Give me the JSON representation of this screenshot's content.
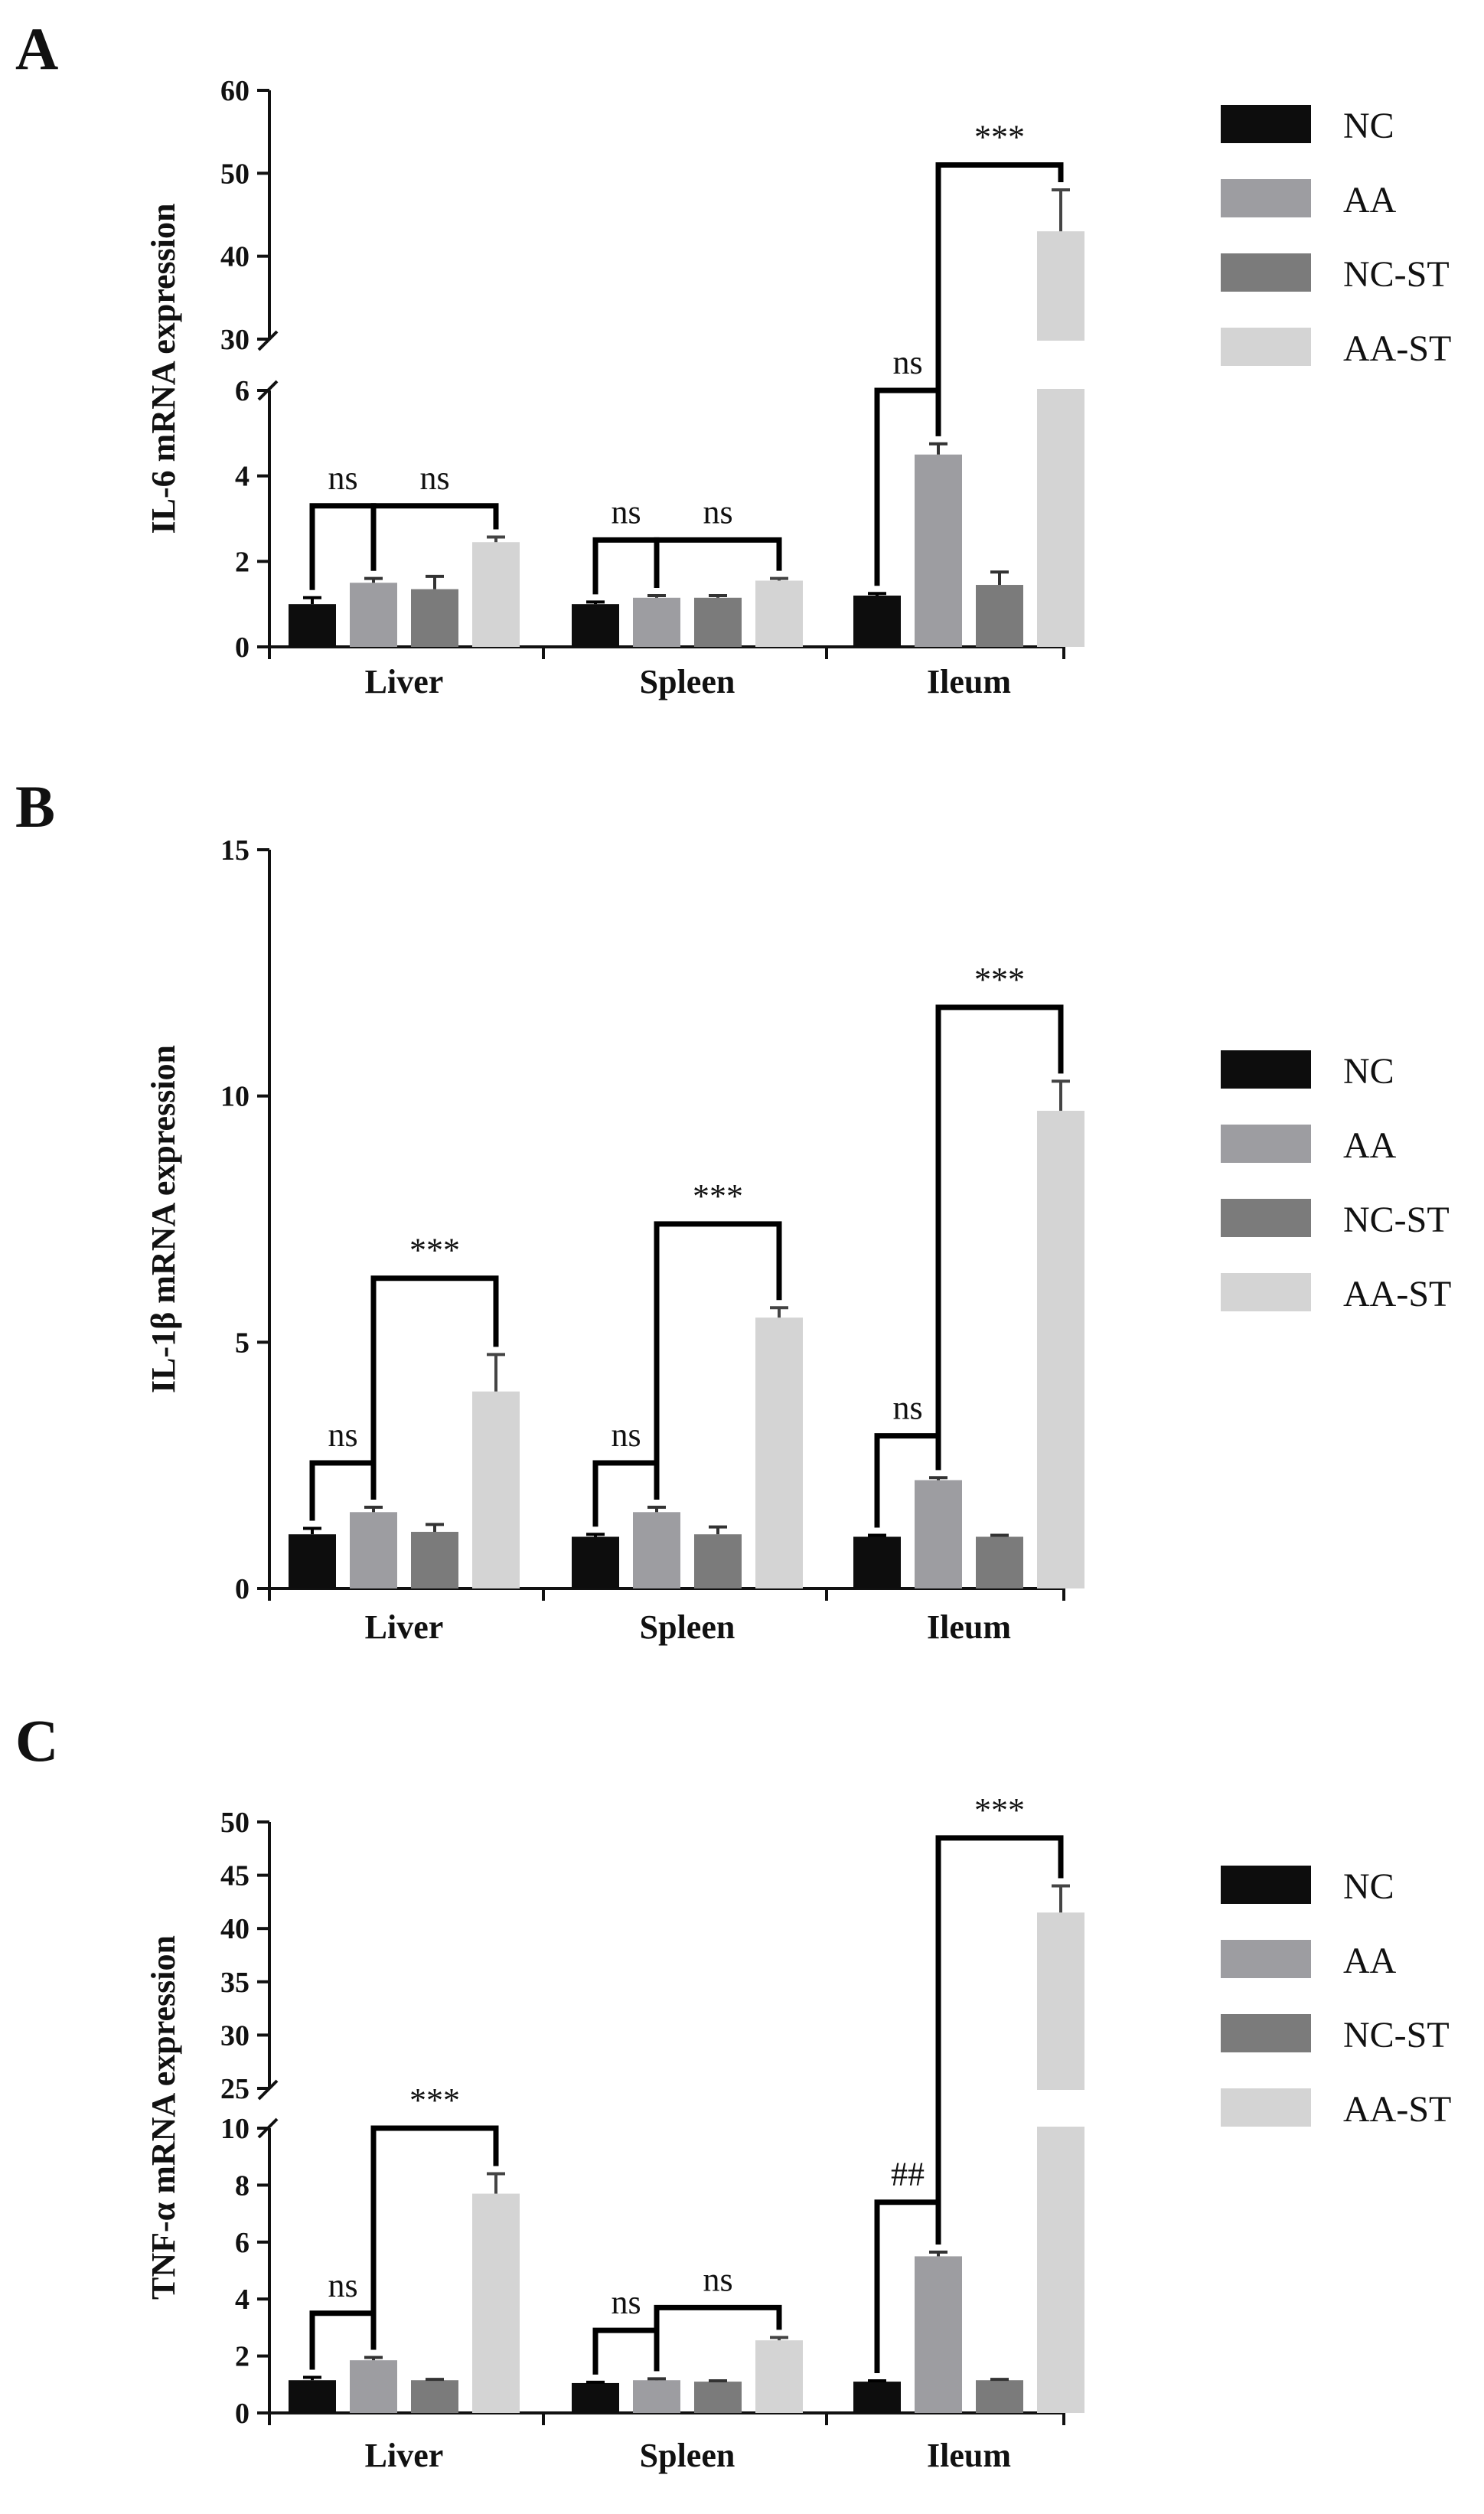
{
  "chart_data": [
    {
      "panel": "A",
      "type": "bar",
      "ylabel": "IL-6 mRNA expression",
      "categories": [
        "Liver",
        "Spleen",
        "Ileum"
      ],
      "y_axis_break": {
        "lower_range": [
          0,
          6
        ],
        "upper_range": [
          30,
          60
        ]
      },
      "lower_ticks": [
        "0",
        "2",
        "4",
        "6"
      ],
      "upper_ticks": [
        "30",
        "40",
        "50",
        "60"
      ],
      "series": [
        {
          "name": "NC",
          "color": "#0d0d0d",
          "values": [
            1.0,
            1.0,
            1.2
          ],
          "errors": [
            0.15,
            0.05,
            0.05
          ]
        },
        {
          "name": "AA",
          "color": "#9d9da1",
          "values": [
            1.5,
            1.15,
            4.5
          ],
          "errors": [
            0.1,
            0.05,
            0.25
          ]
        },
        {
          "name": "NC-ST",
          "color": "#7b7b7b",
          "values": [
            1.35,
            1.15,
            1.45
          ],
          "errors": [
            0.3,
            0.05,
            0.3
          ]
        },
        {
          "name": "AA-ST",
          "color": "#d4d4d4",
          "values": [
            2.45,
            1.55,
            43
          ],
          "errors": [
            0.12,
            0.05,
            5
          ]
        }
      ],
      "annotations": [
        {
          "label": "ns",
          "category": 0,
          "from": 0,
          "to": 1,
          "level": 3.3
        },
        {
          "label": "ns",
          "category": 0,
          "from": 1,
          "to": 3,
          "level": 3.3
        },
        {
          "label": "ns",
          "category": 1,
          "from": 0,
          "to": 1,
          "level": 2.5
        },
        {
          "label": "ns",
          "category": 1,
          "from": 1,
          "to": 3,
          "level": 2.5
        },
        {
          "label": "ns",
          "category": 2,
          "from": 0,
          "to": 1,
          "level": 6
        },
        {
          "label": "***",
          "category": 2,
          "from": 1,
          "to": 3,
          "level": 51
        }
      ]
    },
    {
      "panel": "B",
      "type": "bar",
      "ylabel": "IL-1β mRNA expression",
      "categories": [
        "Liver",
        "Spleen",
        "Ileum"
      ],
      "ylim": [
        0,
        15
      ],
      "ticks": [
        "0",
        "5",
        "10",
        "15"
      ],
      "series": [
        {
          "name": "NC",
          "color": "#0d0d0d",
          "values": [
            1.1,
            1.05,
            1.05
          ],
          "errors": [
            0.12,
            0.05,
            0.03
          ]
        },
        {
          "name": "AA",
          "color": "#9d9da1",
          "values": [
            1.55,
            1.55,
            2.2
          ],
          "errors": [
            0.1,
            0.1,
            0.05
          ]
        },
        {
          "name": "NC-ST",
          "color": "#7b7b7b",
          "values": [
            1.15,
            1.1,
            1.05
          ],
          "errors": [
            0.15,
            0.15,
            0.03
          ]
        },
        {
          "name": "AA-ST",
          "color": "#d4d4d4",
          "values": [
            4.0,
            5.5,
            9.7
          ],
          "errors": [
            0.75,
            0.2,
            0.6
          ]
        }
      ],
      "annotations": [
        {
          "label": "ns",
          "category": 0,
          "from": 0,
          "to": 1,
          "level": 2.55
        },
        {
          "label": "***",
          "category": 0,
          "from": 1,
          "to": 3,
          "level": 6.3
        },
        {
          "label": "ns",
          "category": 1,
          "from": 0,
          "to": 1,
          "level": 2.55
        },
        {
          "label": "***",
          "category": 1,
          "from": 1,
          "to": 3,
          "level": 7.4
        },
        {
          "label": "ns",
          "category": 2,
          "from": 0,
          "to": 1,
          "level": 3.1
        },
        {
          "label": "***",
          "category": 2,
          "from": 1,
          "to": 3,
          "level": 11.8
        }
      ]
    },
    {
      "panel": "C",
      "type": "bar",
      "ylabel": "TNF-α mRNA expression",
      "categories": [
        "Liver",
        "Spleen",
        "Ileum"
      ],
      "y_axis_break": {
        "lower_range": [
          0,
          10
        ],
        "upper_range": [
          25,
          50
        ]
      },
      "lower_ticks": [
        "0",
        "2",
        "4",
        "6",
        "8",
        "10"
      ],
      "upper_ticks": [
        "25",
        "30",
        "35",
        "40",
        "45",
        "50"
      ],
      "series": [
        {
          "name": "NC",
          "color": "#0d0d0d",
          "values": [
            1.15,
            1.05,
            1.1
          ],
          "errors": [
            0.1,
            0.03,
            0.03
          ]
        },
        {
          "name": "AA",
          "color": "#9d9da1",
          "values": [
            1.85,
            1.15,
            5.5
          ],
          "errors": [
            0.1,
            0.05,
            0.15
          ]
        },
        {
          "name": "NC-ST",
          "color": "#7b7b7b",
          "values": [
            1.15,
            1.1,
            1.15
          ],
          "errors": [
            0.03,
            0.03,
            0.03
          ]
        },
        {
          "name": "AA-ST",
          "color": "#d4d4d4",
          "values": [
            7.7,
            2.55,
            41.5
          ],
          "errors": [
            0.7,
            0.1,
            2.5
          ]
        }
      ],
      "annotations": [
        {
          "label": "ns",
          "category": 0,
          "from": 0,
          "to": 1,
          "level": 3.5
        },
        {
          "label": "***",
          "category": 0,
          "from": 1,
          "to": 3,
          "level": 10.0
        },
        {
          "label": "ns",
          "category": 1,
          "from": 0,
          "to": 1,
          "level": 2.9
        },
        {
          "label": "ns",
          "category": 1,
          "from": 1,
          "to": 3,
          "level": 3.7
        },
        {
          "label": "##",
          "category": 2,
          "from": 0,
          "to": 1,
          "level": 7.4
        },
        {
          "label": "***",
          "category": 2,
          "from": 1,
          "to": 3,
          "level": 48.5
        }
      ]
    }
  ]
}
